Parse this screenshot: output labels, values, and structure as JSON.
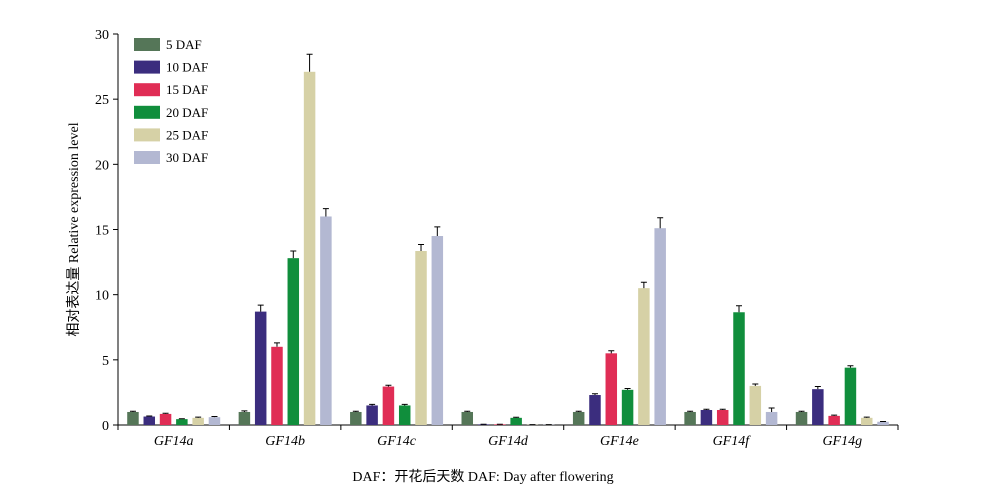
{
  "chart_data": {
    "type": "bar",
    "categories": [
      "GF14a",
      "GF14b",
      "GF14c",
      "GF14d",
      "GF14e",
      "GF14f",
      "GF14g"
    ],
    "series": [
      {
        "name": "5 DAF",
        "color": "#557658",
        "values": [
          1.0,
          1.0,
          1.0,
          1.0,
          1.0,
          1.0,
          1.0
        ],
        "errors": [
          0.05,
          0.08,
          0.05,
          0.05,
          0.05,
          0.05,
          0.05
        ]
      },
      {
        "name": "10 DAF",
        "color": "#3b2d7e",
        "values": [
          0.65,
          8.7,
          1.5,
          0.05,
          2.3,
          1.15,
          2.75
        ],
        "errors": [
          0.04,
          0.5,
          0.08,
          0.01,
          0.1,
          0.06,
          0.2
        ]
      },
      {
        "name": "15 DAF",
        "color": "#e02d55",
        "values": [
          0.85,
          6.0,
          2.95,
          0.05,
          5.5,
          1.15,
          0.7
        ],
        "errors": [
          0.05,
          0.3,
          0.1,
          0.01,
          0.2,
          0.06,
          0.06
        ]
      },
      {
        "name": "20 DAF",
        "color": "#108e3c",
        "values": [
          0.45,
          12.8,
          1.5,
          0.55,
          2.7,
          8.65,
          4.4
        ],
        "errors": [
          0.03,
          0.55,
          0.08,
          0.04,
          0.1,
          0.5,
          0.15
        ]
      },
      {
        "name": "25 DAF",
        "color": "#d6d1a6",
        "values": [
          0.55,
          27.1,
          13.35,
          0.02,
          10.5,
          3.0,
          0.55
        ],
        "errors": [
          0.05,
          1.35,
          0.5,
          0.01,
          0.45,
          0.15,
          0.05
        ]
      },
      {
        "name": "30 DAF",
        "color": "#b3b8d2",
        "values": [
          0.6,
          16.0,
          14.5,
          0.02,
          15.1,
          1.0,
          0.25
        ],
        "errors": [
          0.05,
          0.6,
          0.7,
          0.01,
          0.8,
          0.3,
          0.02
        ]
      }
    ],
    "ylabel": "相对表达量 Relative expression level",
    "xlabel": "",
    "ylim": [
      0,
      30
    ],
    "yticks": [
      0,
      5,
      10,
      15,
      20,
      25,
      30
    ],
    "legend_position": "top-left",
    "grid": false
  },
  "caption": "DAF：开花后天数  DAF: Day after flowering"
}
